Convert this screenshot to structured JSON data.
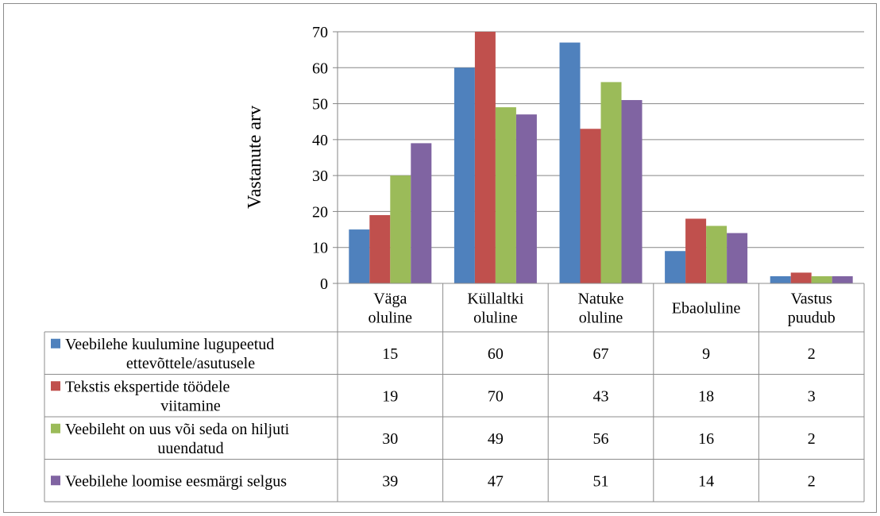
{
  "chart_data": {
    "type": "bar",
    "ylabel": "Vastanute arv",
    "xlabel": "",
    "ylim": [
      0,
      70
    ],
    "yticks": [
      0,
      10,
      20,
      30,
      40,
      50,
      60,
      70
    ],
    "grid": true,
    "legend": "data-table",
    "categories": [
      [
        "Väga",
        "oluline"
      ],
      [
        "Küllaltki",
        "oluline"
      ],
      [
        "Natuke",
        "oluline"
      ],
      [
        "Ebaoluline"
      ],
      [
        "Vastus",
        "puudub"
      ]
    ],
    "series": [
      {
        "name_lines": [
          "Veebilehe kuulumine lugupeetud",
          "ettevõttele/asutusele"
        ],
        "color": "#4f81bd",
        "values": [
          15,
          60,
          67,
          9,
          2
        ]
      },
      {
        "name_lines": [
          "Tekstis ekspertide töödele",
          "viitamine"
        ],
        "color": "#c0504d",
        "values": [
          19,
          70,
          43,
          18,
          3
        ]
      },
      {
        "name_lines": [
          "Veebileht on uus või seda on hiljuti",
          "uuendatud"
        ],
        "color": "#9bbb59",
        "values": [
          30,
          49,
          56,
          16,
          2
        ]
      },
      {
        "name_lines": [
          "Veebilehe loomise eesmärgi selgus"
        ],
        "color": "#8064a2",
        "values": [
          39,
          47,
          51,
          14,
          2
        ]
      }
    ]
  }
}
